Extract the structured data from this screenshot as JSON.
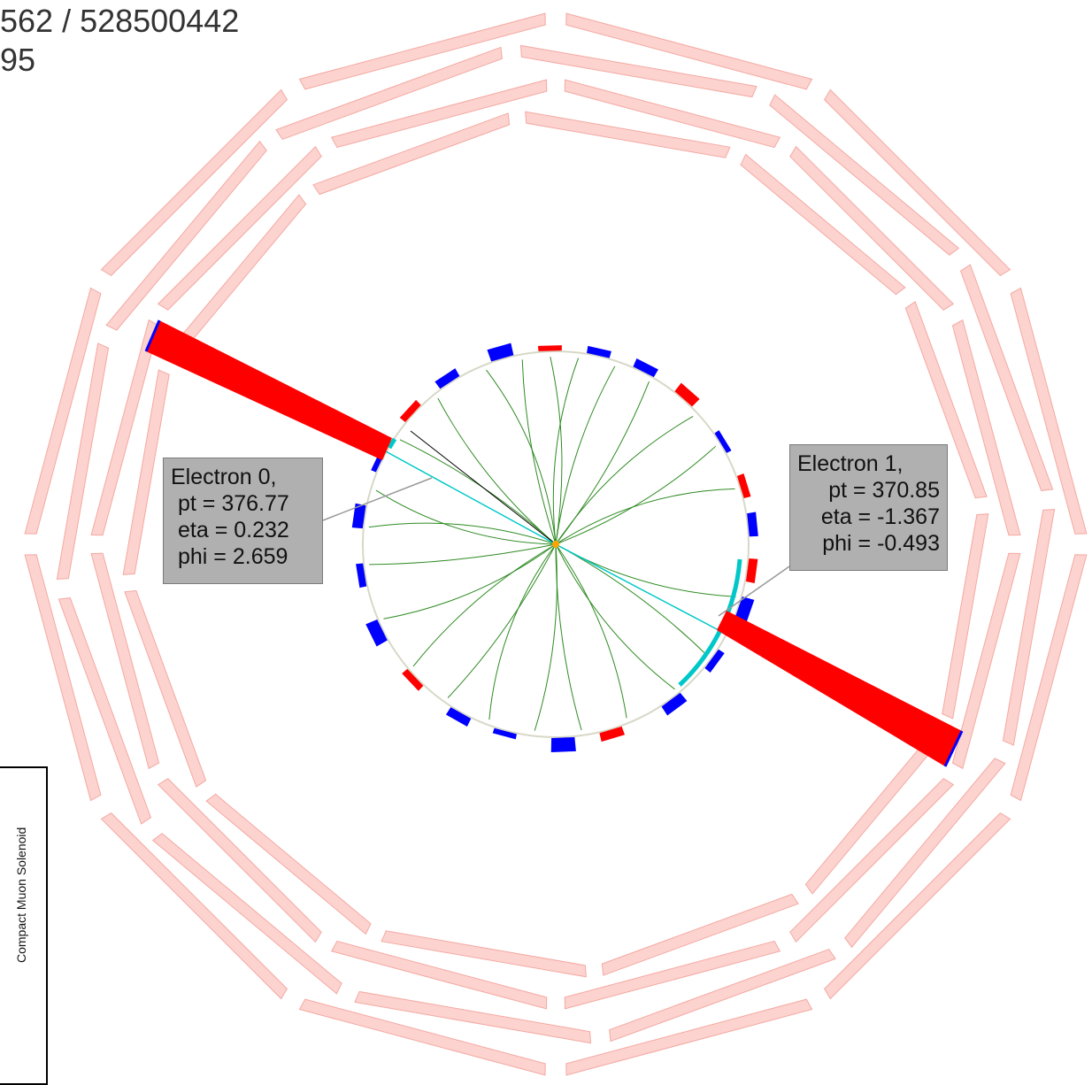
{
  "header": {
    "line1": "562 / 528500442",
    "line2": "95"
  },
  "electrons": [
    {
      "label": "Electron 0,",
      "pt": "pt = 376.77",
      "eta": "eta = 0.232",
      "phi": "phi = 2.659"
    },
    {
      "label": "Electron 1,",
      "pt": "pt = 370.85",
      "eta": "eta = -1.367",
      "phi": "phi = -0.493"
    }
  ],
  "logo": {
    "text": "Compact Muon Solenoid"
  },
  "colors": {
    "muon_chamber": "#fcd3cf",
    "muon_chamber_edge": "#f4a9a2",
    "calorimeter_tower": "#ff0000",
    "ecal_hit": "#0000ff",
    "track": "#2e8b22",
    "electron_track": "#00c8c8",
    "background": "#ffffff"
  }
}
